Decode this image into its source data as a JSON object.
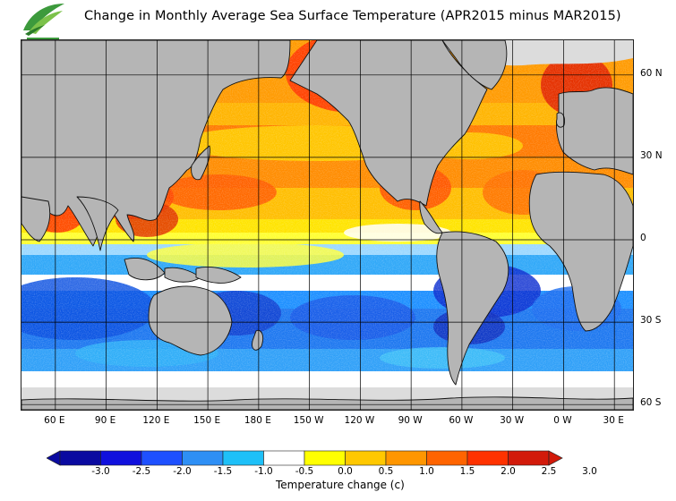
{
  "header": {
    "title": "Change in Monthly Average Sea Surface Temperature (APR2015 minus MAR2015)",
    "logo_icon": "leaf-swoosh-logo"
  },
  "map": {
    "lat_labels": [
      {
        "text": "60 N",
        "lat": 60
      },
      {
        "text": "30 N",
        "lat": 30
      },
      {
        "text": "0",
        "lat": 0
      },
      {
        "text": "30 S",
        "lat": -30
      },
      {
        "text": "60 S",
        "lat": -60
      }
    ],
    "lon_labels": [
      {
        "text": "60 E",
        "lon": 60
      },
      {
        "text": "90 E",
        "lon": 90
      },
      {
        "text": "120 E",
        "lon": 120
      },
      {
        "text": "150 E",
        "lon": 150
      },
      {
        "text": "180 E",
        "lon": 180
      },
      {
        "text": "150 W",
        "lon": 210
      },
      {
        "text": "120 W",
        "lon": 240
      },
      {
        "text": "90 W",
        "lon": 270
      },
      {
        "text": "60 W",
        "lon": 300
      },
      {
        "text": "30 W",
        "lon": 330
      },
      {
        "text": "0 W",
        "lon": 360
      },
      {
        "text": "30 E",
        "lon": 390
      }
    ],
    "colors": {
      "land": "#b5b5b5",
      "ice": "#dcdcdc",
      "coast": "#111111",
      "grid": "#000000"
    }
  },
  "colorbar": {
    "ticks": [
      "-3.0",
      "-2.5",
      "-2.0",
      "-1.5",
      "-1.0",
      "-0.5",
      "0.0",
      "0.5",
      "1.0",
      "1.5",
      "2.0",
      "2.5",
      "3.0"
    ],
    "colors": [
      "#0a0aa0",
      "#1010dd",
      "#1e50ff",
      "#2e8ff5",
      "#1ec0f8",
      "#ffffff",
      "#ffff00",
      "#ffc800",
      "#ff9600",
      "#ff6400",
      "#ff3200",
      "#d21a0a"
    ],
    "label": "Temperature change  (c)"
  }
}
